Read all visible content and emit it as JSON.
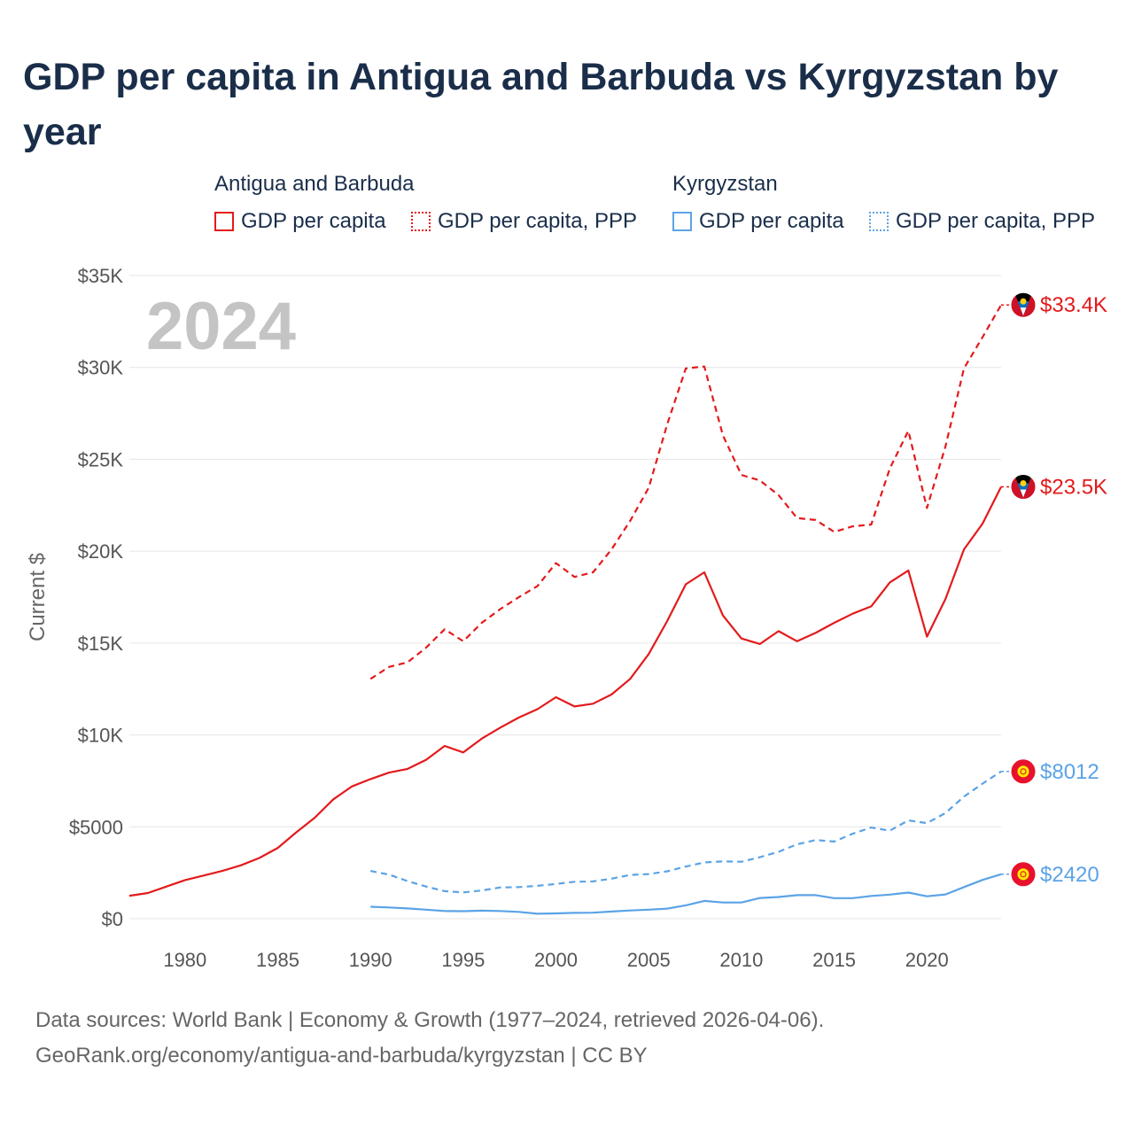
{
  "title": "GDP per capita in Antigua and Barbuda vs Kyrgyzstan by year",
  "legend": {
    "groups": [
      {
        "name": "Antigua and Barbuda",
        "items": [
          "GDP per capita",
          "GDP per capita, PPP"
        ]
      },
      {
        "name": "Kyrgyzstan",
        "items": [
          "GDP per capita",
          "GDP per capita, PPP"
        ]
      }
    ]
  },
  "colors": {
    "antigua": "#e31a1c",
    "kyrgyzstan": "#5ba3e6",
    "title": "#1a2e4a",
    "grid": "#e6e6e6",
    "watermark": "#c4c4c4"
  },
  "footer": {
    "line1": "Data sources: World Bank | Economy & Growth (1977–2024, retrieved 2026-04-06).",
    "line2": "GeoRank.org/economy/antigua-and-barbuda/kyrgyzstan | CC BY"
  },
  "chart_data": {
    "type": "line",
    "title": "GDP per capita in Antigua and Barbuda vs Kyrgyzstan by year",
    "xlabel": "",
    "ylabel": "Current $",
    "year_label": "2024",
    "xlim": [
      1977,
      2024
    ],
    "ylim": [
      0,
      35000
    ],
    "x_ticks": [
      1980,
      1985,
      1990,
      1995,
      2000,
      2005,
      2010,
      2015,
      2020
    ],
    "x_tick_labels": [
      "1980",
      "1985",
      "1990",
      "1995",
      "2000",
      "2005",
      "2010",
      "2015",
      "2020"
    ],
    "y_ticks": [
      0,
      5000,
      10000,
      15000,
      20000,
      25000,
      30000,
      35000
    ],
    "y_tick_labels": [
      "$0",
      "$5000",
      "$10K",
      "$15K",
      "$20K",
      "$25K",
      "$30K",
      "$35K"
    ],
    "grid": true,
    "series": [
      {
        "name": "Antigua and Barbuda GDP per capita",
        "country": "antigua",
        "style": "solid",
        "end_label": "$23.5K",
        "x": [
          1977,
          1978,
          1979,
          1980,
          1981,
          1982,
          1983,
          1984,
          1985,
          1986,
          1987,
          1988,
          1989,
          1990,
          1991,
          1992,
          1993,
          1994,
          1995,
          1996,
          1997,
          1998,
          1999,
          2000,
          2001,
          2002,
          2003,
          2004,
          2005,
          2006,
          2007,
          2008,
          2009,
          2010,
          2011,
          2012,
          2013,
          2014,
          2015,
          2016,
          2017,
          2018,
          2019,
          2020,
          2021,
          2022,
          2023,
          2024
        ],
        "values": [
          1250,
          1400,
          1750,
          2100,
          2350,
          2600,
          2900,
          3300,
          3850,
          4700,
          5500,
          6500,
          7200,
          7600,
          7950,
          8150,
          8650,
          9400,
          9050,
          9800,
          10400,
          10950,
          11400,
          12050,
          11550,
          11700,
          12200,
          13050,
          14400,
          16200,
          18200,
          18850,
          16500,
          15250,
          14950,
          15650,
          15100,
          15550,
          16100,
          16600,
          17000,
          18300,
          18950,
          15350,
          17400,
          20100,
          21500,
          23500
        ]
      },
      {
        "name": "Antigua and Barbuda GDP per capita, PPP",
        "country": "antigua",
        "style": "dashed",
        "end_label": "$33.4K",
        "x": [
          1990,
          1991,
          1992,
          1993,
          1994,
          1995,
          1996,
          1997,
          1998,
          1999,
          2000,
          2001,
          2002,
          2003,
          2004,
          2005,
          2006,
          2007,
          2008,
          2009,
          2010,
          2011,
          2012,
          2013,
          2014,
          2015,
          2016,
          2017,
          2018,
          2019,
          2020,
          2021,
          2022,
          2023,
          2024
        ],
        "values": [
          13050,
          13700,
          13950,
          14750,
          15750,
          15100,
          16100,
          16850,
          17500,
          18100,
          19350,
          18600,
          18850,
          20100,
          21650,
          23450,
          26900,
          29950,
          30050,
          26300,
          24150,
          23850,
          23050,
          21800,
          21700,
          21050,
          21350,
          21450,
          24500,
          26550,
          22350,
          25700,
          29950,
          31650,
          33400
        ]
      },
      {
        "name": "Kyrgyzstan GDP per capita",
        "country": "kyrgyzstan",
        "style": "solid",
        "end_label": "$2420",
        "x": [
          1990,
          1991,
          1992,
          1993,
          1994,
          1995,
          1996,
          1997,
          1998,
          1999,
          2000,
          2001,
          2002,
          2003,
          2004,
          2005,
          2006,
          2007,
          2008,
          2009,
          2010,
          2011,
          2012,
          2013,
          2014,
          2015,
          2016,
          2017,
          2018,
          2019,
          2020,
          2021,
          2022,
          2023,
          2024
        ],
        "values": [
          650,
          610,
          560,
          490,
          420,
          410,
          440,
          420,
          370,
          270,
          290,
          320,
          330,
          390,
          450,
          490,
          550,
          730,
          970,
          880,
          880,
          1130,
          1180,
          1280,
          1280,
          1120,
          1120,
          1240,
          1310,
          1420,
          1220,
          1320,
          1720,
          2110,
          2420
        ]
      },
      {
        "name": "Kyrgyzstan GDP per capita, PPP",
        "country": "kyrgyzstan",
        "style": "dashed",
        "end_label": "$8012",
        "x": [
          1990,
          1991,
          1992,
          1993,
          1994,
          1995,
          1996,
          1997,
          1998,
          1999,
          2000,
          2001,
          2002,
          2003,
          2004,
          2005,
          2006,
          2007,
          2008,
          2009,
          2010,
          2011,
          2012,
          2013,
          2014,
          2015,
          2016,
          2017,
          2018,
          2019,
          2020,
          2021,
          2022,
          2023,
          2024
        ],
        "values": [
          2600,
          2400,
          2050,
          1750,
          1500,
          1430,
          1540,
          1700,
          1720,
          1790,
          1890,
          2010,
          2030,
          2180,
          2380,
          2430,
          2580,
          2840,
          3060,
          3120,
          3100,
          3350,
          3640,
          4050,
          4280,
          4200,
          4630,
          4960,
          4790,
          5350,
          5200,
          5750,
          6650,
          7350,
          8012
        ]
      }
    ]
  }
}
